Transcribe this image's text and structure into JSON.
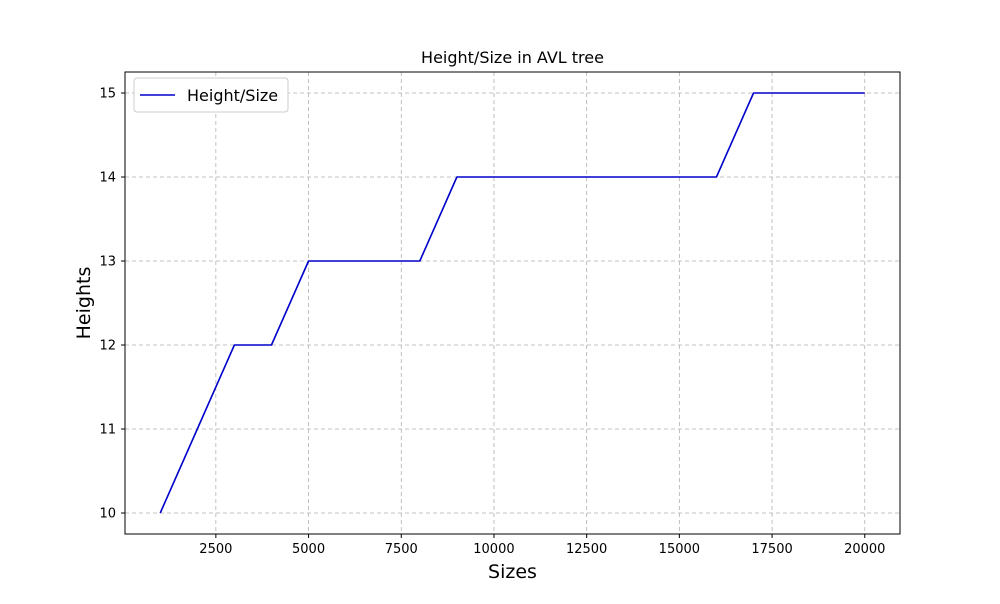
{
  "chart_data": {
    "type": "line",
    "title": "Height/Size in AVL tree",
    "xlabel": "Sizes",
    "ylabel": "Heights",
    "xlim": [
      50,
      20950
    ],
    "ylim": [
      9.75,
      15.25
    ],
    "xticks": [
      2500,
      5000,
      7500,
      10000,
      12500,
      15000,
      17500,
      20000
    ],
    "xtick_labels": [
      "2500",
      "5000",
      "7500",
      "10000",
      "12500",
      "15000",
      "17500",
      "20000"
    ],
    "yticks": [
      10,
      11,
      12,
      13,
      14,
      15
    ],
    "ytick_labels": [
      "10",
      "11",
      "12",
      "13",
      "14",
      "15"
    ],
    "grid": true,
    "legend_position": "top-left",
    "series": [
      {
        "name": "Height/Size",
        "color": "#0000cc",
        "x": [
          1000,
          2000,
          3000,
          4000,
          5000,
          6000,
          7000,
          8000,
          9000,
          10000,
          11000,
          12000,
          13000,
          14000,
          15000,
          16000,
          17000,
          18000,
          19000,
          20000
        ],
        "y": [
          10,
          11,
          12,
          12,
          13,
          13,
          13,
          13,
          14,
          14,
          14,
          14,
          14,
          14,
          14,
          14,
          15,
          15,
          15,
          15
        ]
      }
    ]
  }
}
